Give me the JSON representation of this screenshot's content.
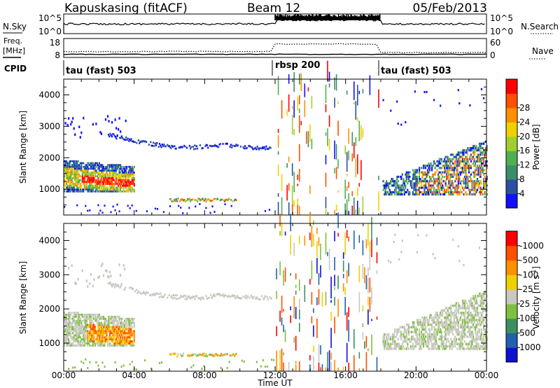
{
  "header": {
    "station": "Kapuskasing (fitACF)",
    "beam": "Beam 12",
    "date": "05/Feb/2013"
  },
  "chart_data": [
    {
      "type": "line",
      "panel": "noise",
      "left_label": "N.Sky",
      "right_label": "N.Search",
      "left_ticks": [
        "10^5",
        "10^0"
      ],
      "right_ticks": [
        "10^5",
        "10^0"
      ],
      "description_levels": {
        "sky_before": "high",
        "sky_1200_1800": "very high",
        "sky_after": "high"
      }
    },
    {
      "type": "line",
      "panel": "frequency",
      "left_label": "Freq.",
      "left_unit": "[MHz]",
      "right_label": "Nave",
      "left_ticks": [
        "18",
        "8"
      ],
      "right_ticks": [
        "60",
        "0"
      ],
      "freq_mhz": 10.5,
      "nave_before": 22,
      "nave_1200_1800": 50,
      "nave_after": 18
    },
    {
      "type": "table",
      "panel": "cpid",
      "label": "CPID",
      "segments": [
        {
          "name": "tau (fast) 503",
          "start_hour": 0,
          "end_hour": 12
        },
        {
          "name": "rbsp 200",
          "start_hour": 12,
          "end_hour": 18
        },
        {
          "name": "tau (fast) 503",
          "start_hour": 18,
          "end_hour": 24
        }
      ]
    },
    {
      "type": "heatmap",
      "panel": "power",
      "ylabel": "Slant Range [km]",
      "ylim": [
        180,
        4500
      ],
      "yticks": [
        1000,
        2000,
        3000,
        4000
      ],
      "colorbar_label": "Power [dB]",
      "colorbar_ticks": [
        "4",
        "8",
        "12",
        "16",
        "20",
        "24",
        "28"
      ],
      "colors": [
        "#1010ff",
        "#2b50a0",
        "#3c8d6c",
        "#50b050",
        "#a0d030",
        "#f0d000",
        "#ff9000",
        "#ff5000",
        "#ff0000"
      ]
    },
    {
      "type": "heatmap",
      "panel": "velocity",
      "ylabel": "Slant Range [km]",
      "ylim": [
        180,
        4500
      ],
      "yticks": [
        1000,
        2000,
        3000,
        4000
      ],
      "colorbar_label": "Velocity [m s^-1]",
      "colorbar_ticks": [
        "1000",
        "500",
        "100",
        "25",
        "-25",
        "-100",
        "-500",
        "-1000"
      ],
      "colors": [
        "#1010d0",
        "#2060b0",
        "#3c9060",
        "#80c040",
        "#c8c8c0",
        "#f0d000",
        "#ff9000",
        "#ff5000",
        "#ff0000"
      ]
    }
  ],
  "xaxis": {
    "label": "Time UT",
    "range_hours": [
      0,
      24
    ],
    "tick_labels": [
      "00:00",
      "04:00",
      "08:00",
      "12:00",
      "16:00",
      "20:00",
      "00:00"
    ]
  }
}
